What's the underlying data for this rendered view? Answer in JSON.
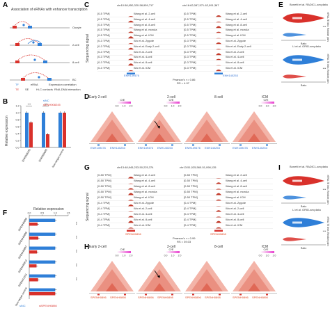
{
  "colors": {
    "blue": "#2f7fd8",
    "red": "#d9312b",
    "heat": "#f3b4a8",
    "heat_dark": "#d94e3a",
    "magenta": "#e83fcf",
    "track_fill": "#c23a2a"
  },
  "panel_a": {
    "letter": "A",
    "title": "Association of eRNAs with enhancer transcription",
    "stages": [
      "Oocyte",
      "2-cell",
      "8-cell",
      "BC"
    ],
    "legend": [
      "TF",
      "eRNA",
      "Expression correlation",
      "TE",
      "SE",
      "Hi-C contacts",
      "RNA-DNA interaction"
    ]
  },
  "panel_b": {
    "letter": "B",
    "ylabel": "Relative expression",
    "legend": [
      "siNC",
      "siENH008245"
    ],
    "significance": [
      "***",
      "***"
    ],
    "chart_data": {
      "type": "bar",
      "categories": [
        "ENH008245",
        "ENH009645",
        "Non-target control"
      ],
      "series": [
        {
          "name": "siNC",
          "values": [
            1.0,
            1.0,
            1.0
          ]
        },
        {
          "name": "siENH008245",
          "values": [
            0.72,
            0.38,
            1.0
          ]
        }
      ],
      "yticks": [
        "0.0",
        "0.2",
        "0.4",
        "0.6",
        "0.8",
        "1.0",
        "1.2"
      ],
      "ylim": [
        0,
        1.2
      ]
    }
  },
  "panel_c": {
    "letter": "C",
    "loc_left": "chr10:58,950,320-58,959,717",
    "loc_right": "chr16:62,087,571-62,091,367",
    "ylabel": "Sequencing signal",
    "tracks": [
      {
        "scale": "[0-5 TPM]",
        "label": "Wang et al. 2-cell"
      },
      {
        "scale": "[0-5 TPM]",
        "label": "Wang et al. 4-cell"
      },
      {
        "scale": "[0-5 TPM]",
        "label": "Wang et al. 8-cell"
      },
      {
        "scale": "[0-5 TPM]",
        "label": "Wang et al. morula"
      },
      {
        "scale": "[0-5 TPM]",
        "label": "Wang et al. ICM"
      },
      {
        "scale": "[0-3 TPM]",
        "label": "Wu et al. Zygote"
      },
      {
        "scale": "[0-3 TPM]",
        "label": "Wu et al. Early 2-cell"
      },
      {
        "scale": "[0-3 TPM]",
        "label": "Wu et al. 2-cell"
      },
      {
        "scale": "[0-3 TPM]",
        "label": "Wu et al. 4-cell"
      },
      {
        "scale": "[0-3 TPM]",
        "label": "Wu et al. 8-cell"
      },
      {
        "scale": "[0-3 TPM]",
        "label": "Wu et al. ICM"
      }
    ],
    "gene_left": "ENH139476",
    "gene_right": "ENH140253",
    "stats_line1": "Pearson's r = 0.86",
    "stats_line2": "RS = 4.97"
  },
  "panel_d": {
    "letter": "D",
    "stages": [
      "Early 2-cell",
      "2-cell",
      "8-cell",
      "ICM"
    ],
    "colorbar_title": "O/E",
    "colorbar_ticks": [
      "0.0",
      "1.0",
      "2.0"
    ],
    "gene_left": "ENH139476",
    "gene_right": "ENH140253"
  },
  "panel_e": {
    "letter": "E",
    "title_top": "Bonetti et al. RADICL-seq data",
    "title_bottom": "Li et al. GRID-seq data",
    "cat_top": "eRNA-TE links",
    "cat_bottom": "Random pairs",
    "xlabel": "Ratio",
    "sig": "***"
  },
  "panel_f": {
    "letter": "F",
    "xlabel": "Relative expression",
    "xticks": [
      "0.0",
      "0.5",
      "1.0",
      "1.5"
    ],
    "legend": [
      "siNC",
      "siSPENH0898"
    ],
    "significance": [
      "***",
      "***",
      "***",
      "***",
      "***"
    ],
    "chart_data": {
      "type": "bar",
      "categories": [
        "SPENH0898",
        "SPENH0896",
        "SPENH0897",
        "SPENH0912",
        "SPENH1221",
        "Non-target control"
      ],
      "series": [
        {
          "name": "siNC",
          "values": [
            1.0,
            1.0,
            1.0,
            1.0,
            1.0,
            1.0
          ]
        },
        {
          "name": "siSPENH0898",
          "values": [
            0.32,
            0.35,
            0.3,
            0.28,
            0.34,
            1.0
          ]
        }
      ],
      "xlim": [
        0,
        1.5
      ]
    }
  },
  "panel_g": {
    "letter": "G",
    "loc_left": "chr13:48,945,233-50,225,374",
    "loc_right": "chr13:51,025,560-51,098,135",
    "ylabel": "Sequencing signal",
    "tracks": [
      {
        "scale": "[0-50 TPM]",
        "label": "Wang et al. 2-cell"
      },
      {
        "scale": "[0-50 TPM]",
        "label": "Wang et al. 4-cell"
      },
      {
        "scale": "[0-50 TPM]",
        "label": "Wang et al. 8-cell"
      },
      {
        "scale": "[0-50 TPM]",
        "label": "Wang et al. morula"
      },
      {
        "scale": "[0-50 TPM]",
        "label": "Wang et al. ICM"
      },
      {
        "scale": "[0-4 TPM]",
        "label": "Wu et al. Zygote"
      },
      {
        "scale": "[0-4 TPM]",
        "label": "Wu et al. 2-cell"
      },
      {
        "scale": "[0-4 TPM]",
        "label": "Wu et al. 4-cell"
      },
      {
        "scale": "[0-4 TPM]",
        "label": "Wu et al. 8-cell"
      },
      {
        "scale": "[0-4 TPM]",
        "label": "Wu et al. ICM"
      }
    ],
    "gene_left": "SPENH0896",
    "gene_right": "SPENH0898",
    "stats_line1": "Pearson's r = 0.99",
    "stats_line2": "RS = 39.03"
  },
  "panel_h": {
    "letter": "H",
    "stages": [
      "Early 2-cell",
      "2-cell",
      "8-cell",
      "ICM"
    ],
    "colorbar_title": "O/E",
    "colorbar_ticks": [
      "0.0",
      "1.0",
      "2.0"
    ],
    "gene_left": "SPENH0896",
    "gene_right": "SPENH0898"
  },
  "panel_i": {
    "letter": "I",
    "title_top": "Bonetti et al. RADICL-seq data",
    "title_bottom": "Li et al. GRID-seq data",
    "cat_top": "eRNA-TE links",
    "cat_bottom": "Random pairs",
    "xlabel": "Ratio",
    "sig": "***"
  }
}
